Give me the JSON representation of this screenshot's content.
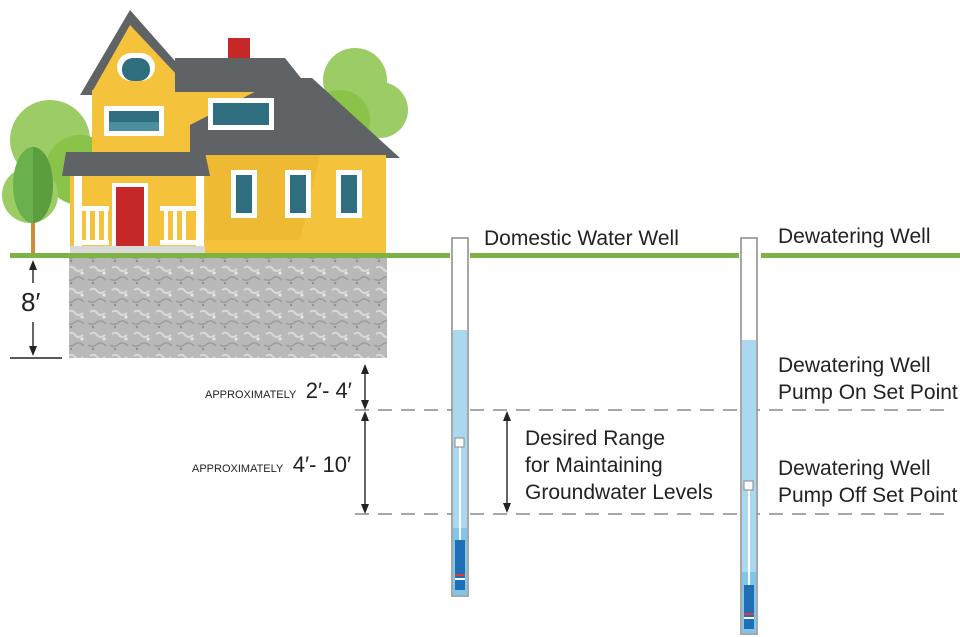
{
  "labels": {
    "domestic_well": "Domestic Water Well",
    "dewatering_well": "Dewatering Well",
    "depth_8": "8′",
    "approx_word": "APPROXIMATELY",
    "range_2_4": "2′- 4′",
    "range_4_10": "4′- 10′",
    "desired_range": [
      "Desired Range",
      "for Maintaining",
      "Groundwater Levels"
    ],
    "pump_on": [
      "Dewatering Well",
      "Pump On Set Point"
    ],
    "pump_off": [
      "Dewatering Well",
      "Pump Off Set Point"
    ]
  },
  "colors": {
    "ground_line": "#7cb342",
    "water": "#a9d8ef",
    "water_deep": "#4fb1df",
    "house_wall": "#f5c33b",
    "roof": "#5f6366",
    "door": "#c62828",
    "window": "#2e6e7e",
    "tree_light": "#9ccc65",
    "tree_dark": "#6ab04c",
    "foundation": "#b8b8b8",
    "dash": "#8a8a8a"
  }
}
